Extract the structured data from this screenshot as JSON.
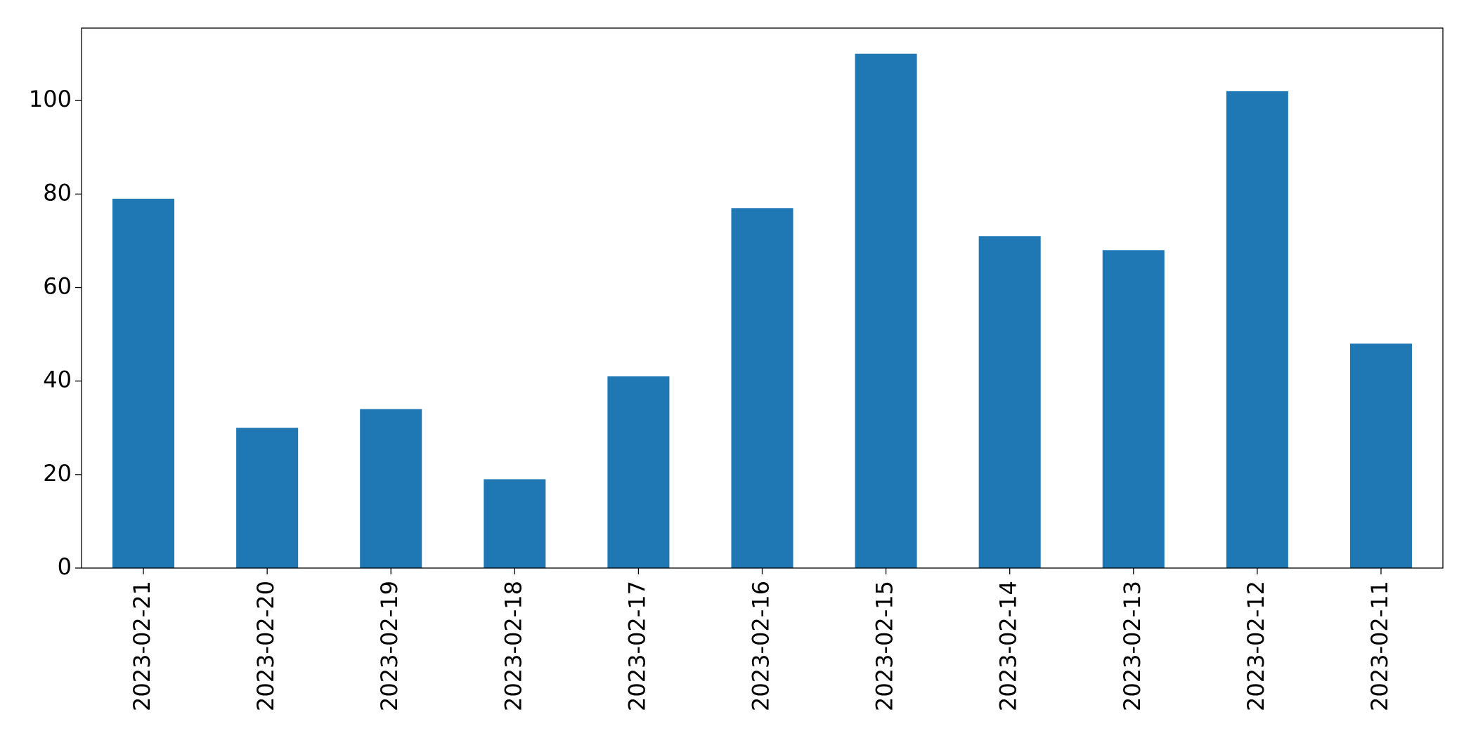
{
  "chart_data": {
    "type": "bar",
    "categories": [
      "2023-02-21",
      "2023-02-20",
      "2023-02-19",
      "2023-02-18",
      "2023-02-17",
      "2023-02-16",
      "2023-02-15",
      "2023-02-14",
      "2023-02-13",
      "2023-02-12",
      "2023-02-11"
    ],
    "values": [
      79,
      30,
      34,
      19,
      41,
      77,
      110,
      71,
      68,
      102,
      48
    ],
    "color": "#1f77b4",
    "ylim": [
      0,
      115.5
    ],
    "yticks": [
      0,
      20,
      40,
      60,
      80,
      100
    ],
    "grid": false
  }
}
